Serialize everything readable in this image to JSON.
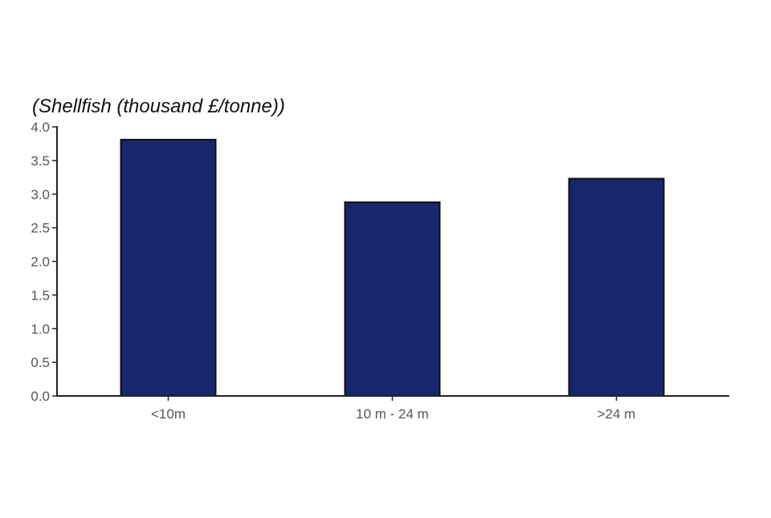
{
  "chart_data": {
    "type": "bar",
    "title": "(Shellfish (thousand £/tonne))",
    "xlabel": "",
    "ylabel": "",
    "categories": [
      "<10m",
      "10 m - 24 m",
      ">24 m"
    ],
    "values": [
      3.81,
      2.88,
      3.23
    ],
    "ylim": [
      0,
      4.0
    ],
    "yticks": [
      "0.0",
      "0.5",
      "1.0",
      "1.5",
      "2.0",
      "2.5",
      "3.0",
      "3.5",
      "4.0"
    ],
    "grid": false,
    "legend": "none",
    "colors": {
      "bar": "#16276e",
      "bar_outline": "#111111",
      "axis": "#222222",
      "tick_label": "#555555"
    }
  }
}
